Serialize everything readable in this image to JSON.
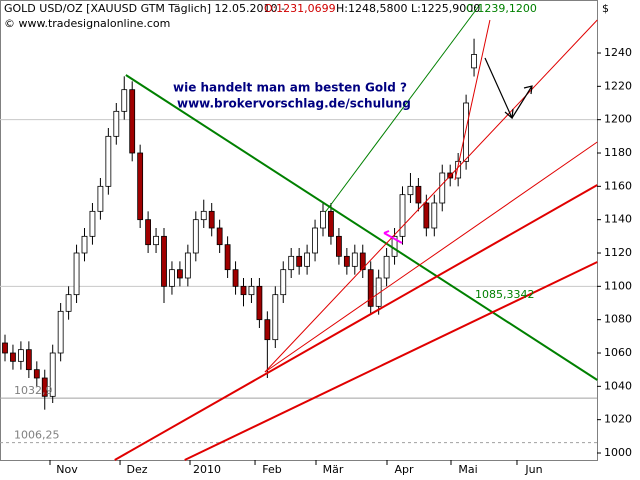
{
  "chart_data": {
    "type": "candlestick",
    "title": "GOLD USD/OZ [XAUUSD GTM  Täglich] 12.05.2010 -",
    "header_open": "O:1231,0699",
    "header_hl": "H:1248,5800 L:1225,9000",
    "header_close": "C:1239,1200",
    "copyright": "© www.tradesignalonline.com",
    "y_axis_label": "$",
    "annotations": [
      "wie handelt man am besten Gold ?",
      "www.brokervorschlag.de/schulung"
    ],
    "up_color": "#ffffff",
    "down_color": "#a00000",
    "open": [
      1066,
      1060,
      1055,
      1062,
      1050,
      1045,
      1034,
      1060,
      1085,
      1095,
      1120,
      1130,
      1145,
      1160,
      1190,
      1205,
      1218,
      1180,
      1140,
      1125,
      1130,
      1100,
      1110,
      1105,
      1120,
      1140,
      1145,
      1135,
      1125,
      1110,
      1100,
      1095,
      1100,
      1080,
      1068,
      1095,
      1110,
      1118,
      1112,
      1120,
      1135,
      1145,
      1130,
      1118,
      1112,
      1120,
      1110,
      1088,
      1105,
      1118,
      1130,
      1155,
      1160,
      1150,
      1135,
      1150,
      1168,
      1165,
      1175,
      1231.0699
    ],
    "high": [
      1071,
      1065,
      1067,
      1067,
      1055,
      1050,
      1065,
      1090,
      1100,
      1125,
      1135,
      1150,
      1165,
      1195,
      1210,
      1226,
      1223,
      1185,
      1145,
      1135,
      1135,
      1115,
      1115,
      1125,
      1145,
      1152,
      1150,
      1140,
      1130,
      1115,
      1105,
      1105,
      1105,
      1085,
      1100,
      1115,
      1123,
      1123,
      1125,
      1140,
      1150,
      1150,
      1135,
      1123,
      1125,
      1125,
      1115,
      1110,
      1123,
      1135,
      1160,
      1168,
      1165,
      1155,
      1155,
      1173,
      1173,
      1180,
      1215,
      1248.58
    ],
    "low": [
      1055,
      1050,
      1050,
      1045,
      1040,
      1026,
      1030,
      1055,
      1080,
      1090,
      1115,
      1125,
      1140,
      1155,
      1185,
      1200,
      1175,
      1135,
      1120,
      1120,
      1090,
      1095,
      1100,
      1100,
      1115,
      1135,
      1130,
      1120,
      1105,
      1095,
      1088,
      1090,
      1075,
      1045,
      1063,
      1090,
      1105,
      1107,
      1107,
      1115,
      1130,
      1125,
      1113,
      1107,
      1107,
      1105,
      1083,
      1083,
      1100,
      1113,
      1125,
      1150,
      1145,
      1130,
      1130,
      1145,
      1160,
      1160,
      1170,
      1225.9
    ],
    "close": [
      1060,
      1055,
      1062,
      1050,
      1045,
      1034,
      1060,
      1085,
      1095,
      1120,
      1130,
      1145,
      1160,
      1190,
      1205,
      1218,
      1180,
      1140,
      1125,
      1130,
      1100,
      1110,
      1105,
      1120,
      1140,
      1145,
      1135,
      1125,
      1110,
      1100,
      1095,
      1100,
      1080,
      1068,
      1095,
      1110,
      1118,
      1112,
      1120,
      1135,
      1145,
      1130,
      1118,
      1112,
      1120,
      1110,
      1088,
      1105,
      1118,
      1130,
      1155,
      1160,
      1150,
      1135,
      1150,
      1168,
      1165,
      1175,
      1210,
      1239.12
    ],
    "xlim": [
      -0.629,
      74.465
    ],
    "xticks": [
      {
        "value": 5.66,
        "label": "Nov"
      },
      {
        "value": 14.47,
        "label": "Dez"
      },
      {
        "value": 23.27,
        "label": "2010"
      },
      {
        "value": 31.45,
        "label": "Feb"
      },
      {
        "value": 39.12,
        "label": "Mär"
      },
      {
        "value": 48.05,
        "label": "Apr"
      },
      {
        "value": 56.1,
        "label": "Mai"
      },
      {
        "value": 64.4,
        "label": "Jun"
      }
    ],
    "ylim": [
      995.8,
      1271.8
    ],
    "yticks": [
      1000,
      1020,
      1040,
      1060,
      1080,
      1100,
      1120,
      1140,
      1160,
      1180,
      1200,
      1220,
      1240
    ],
    "gridlines": [
      1100,
      1200
    ],
    "levels": [
      {
        "value": 1032.9,
        "label": "1032,9"
      },
      {
        "value": 1006.25,
        "label": "1006,25"
      }
    ],
    "crossing_label": {
      "value": 1085.3342,
      "label": "1085,3342"
    },
    "trendlines": [
      {
        "color": "#008000",
        "width": 2,
        "x": [
          15.2,
          74.5
        ],
        "y": [
          1226.8,
          1043.8
        ]
      },
      {
        "color": "#e00000",
        "width": 2,
        "x": [
          13.8,
          74.5
        ],
        "y": [
          995.8,
          1160.8
        ]
      },
      {
        "color": "#e00000",
        "width": 2,
        "x": [
          22.6,
          74.5
        ],
        "y": [
          995.8,
          1114.6
        ]
      },
      {
        "color": "#e00000",
        "width": 1,
        "x": [
          32.7,
          74.5
        ],
        "y": [
          1048.6,
          1259.8
        ]
      },
      {
        "color": "#e00000",
        "width": 1,
        "x": [
          32.7,
          74.5
        ],
        "y": [
          1048.6,
          1186.6
        ]
      },
      {
        "color": "#e00000",
        "width": 1,
        "x": [
          56.6,
          61
        ],
        "y": [
          1163.8,
          1259.8
        ]
      },
      {
        "color": "#008000",
        "width": 1,
        "x": [
          40.3,
          59.7
        ],
        "y": [
          1144.6,
          1268.8
        ]
      }
    ]
  }
}
